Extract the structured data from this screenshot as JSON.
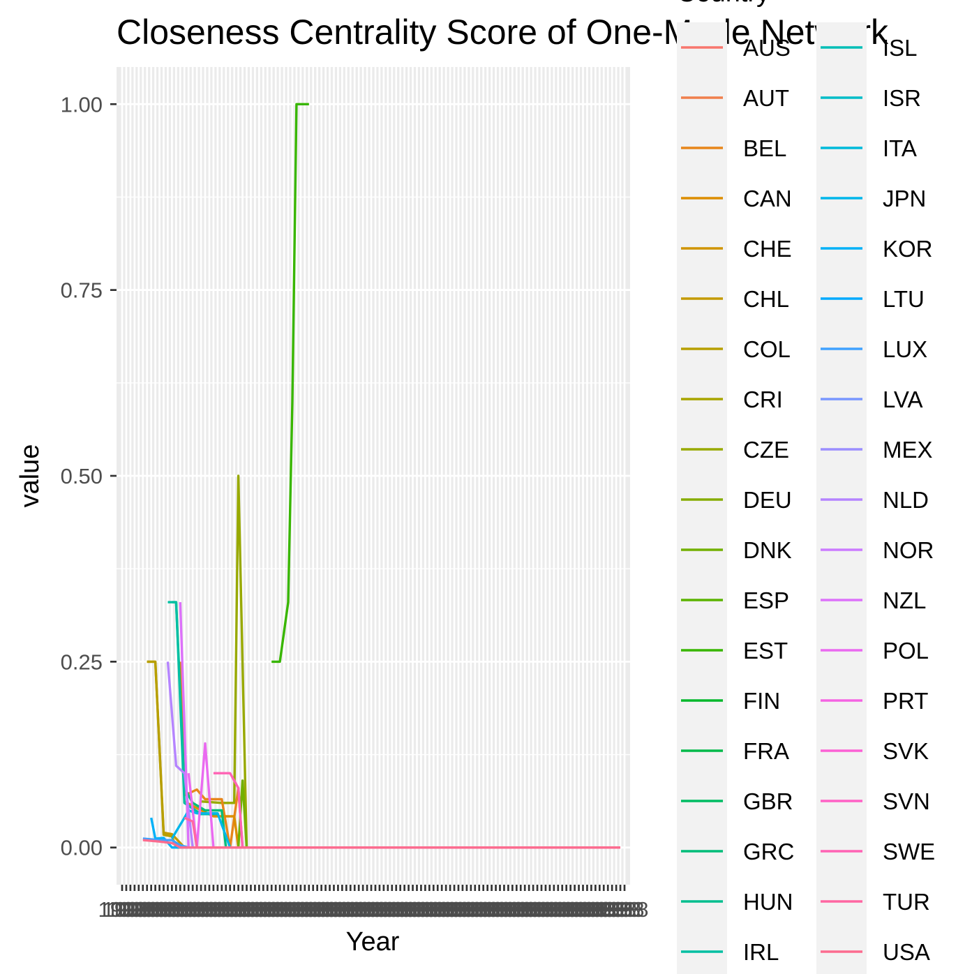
{
  "chart_data": {
    "type": "line",
    "title": "Closeness Centrality Score of One-Mode Network",
    "xlabel": "Year",
    "ylabel": "value",
    "yticks": [
      "0.00",
      "0.25",
      "0.50",
      "0.75",
      "1.00"
    ],
    "ylim": [
      -0.05,
      1.05
    ],
    "x_tick_label": "1998",
    "x_tick_label_last": "2018",
    "legend": {
      "title": "Country",
      "placement": "right",
      "columns": 2
    },
    "grid": true,
    "series": [
      {
        "name": "AUS",
        "color": "#F8766D",
        "values": []
      },
      {
        "name": "AUT",
        "color": "#F07F4C",
        "values": []
      },
      {
        "name": "BEL",
        "color": "#E7861B",
        "values": []
      },
      {
        "name": "CAN",
        "color": "#DC8D00",
        "values": []
      },
      {
        "name": "CHE",
        "color": "#D09400",
        "values": []
      },
      {
        "name": "CHL",
        "color": "#C49A00",
        "values": []
      },
      {
        "name": "COL",
        "color": "#B79F00",
        "values": []
      },
      {
        "name": "CRI",
        "color": "#A8A400",
        "values": []
      },
      {
        "name": "CZE",
        "color": "#98A900",
        "values": []
      },
      {
        "name": "DEU",
        "color": "#86AC00",
        "values": []
      },
      {
        "name": "DNK",
        "color": "#72B000",
        "values": []
      },
      {
        "name": "ESP",
        "color": "#5BB300",
        "values": []
      },
      {
        "name": "EST",
        "color": "#38B600",
        "values": []
      },
      {
        "name": "FIN",
        "color": "#00B82B",
        "values": []
      },
      {
        "name": "FRA",
        "color": "#00BA4A",
        "values": []
      },
      {
        "name": "GBR",
        "color": "#00BC63",
        "values": []
      },
      {
        "name": "GRC",
        "color": "#00BD79",
        "values": []
      },
      {
        "name": "HUN",
        "color": "#00BE8E",
        "values": []
      },
      {
        "name": "IRL",
        "color": "#00BFA2",
        "values": []
      },
      {
        "name": "ISL",
        "color": "#00BEB6",
        "values": []
      },
      {
        "name": "ISR",
        "color": "#00BDC8",
        "values": []
      },
      {
        "name": "ITA",
        "color": "#00BADA",
        "values": []
      },
      {
        "name": "JPN",
        "color": "#00B6EA",
        "values": []
      },
      {
        "name": "KOR",
        "color": "#00B1F8",
        "values": []
      },
      {
        "name": "LTU",
        "color": "#00AAFE",
        "values": []
      },
      {
        "name": "LUX",
        "color": "#40A1FF",
        "values": []
      },
      {
        "name": "LVA",
        "color": "#7997FF",
        "values": []
      },
      {
        "name": "MEX",
        "color": "#9B8EFF",
        "values": []
      },
      {
        "name": "NLD",
        "color": "#B584FF",
        "values": []
      },
      {
        "name": "NOR",
        "color": "#CB7BFF",
        "values": []
      },
      {
        "name": "NZL",
        "color": "#DC71FA",
        "values": []
      },
      {
        "name": "POL",
        "color": "#EA6AF0",
        "values": []
      },
      {
        "name": "PRT",
        "color": "#F564E3",
        "values": []
      },
      {
        "name": "SVK",
        "color": "#FC61D5",
        "values": []
      },
      {
        "name": "SVN",
        "color": "#FF61C5",
        "values": []
      },
      {
        "name": "SWE",
        "color": "#FF63B4",
        "values": []
      },
      {
        "name": "TUR",
        "color": "#FF67A2",
        "values": []
      },
      {
        "name": "USA",
        "color": "#FC6C8F",
        "values": []
      }
    ],
    "x_count": 122
  }
}
